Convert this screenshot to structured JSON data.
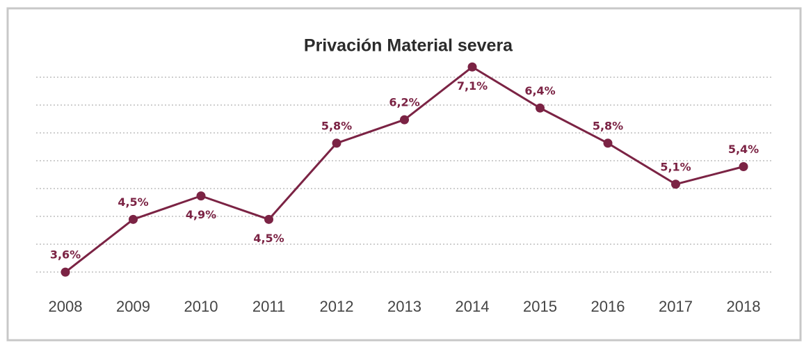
{
  "chart_data": {
    "type": "line",
    "title": "Privación Material severa",
    "categories": [
      "2008",
      "2009",
      "2010",
      "2011",
      "2012",
      "2013",
      "2014",
      "2015",
      "2016",
      "2017",
      "2018"
    ],
    "series": [
      {
        "name": "Privación Material severa",
        "color": "#7b2344",
        "values": [
          3.6,
          4.5,
          4.9,
          4.5,
          5.8,
          6.2,
          7.1,
          6.4,
          5.8,
          5.1,
          5.4
        ],
        "value_labels": [
          "3,6%",
          "4,5%",
          "4,9%",
          "4,5%",
          "5,8%",
          "6,2%",
          "7,1%",
          "6,4%",
          "5,8%",
          "5,1%",
          "5,4%"
        ]
      }
    ],
    "ylim": [
      3.4,
      7.4
    ]
  }
}
